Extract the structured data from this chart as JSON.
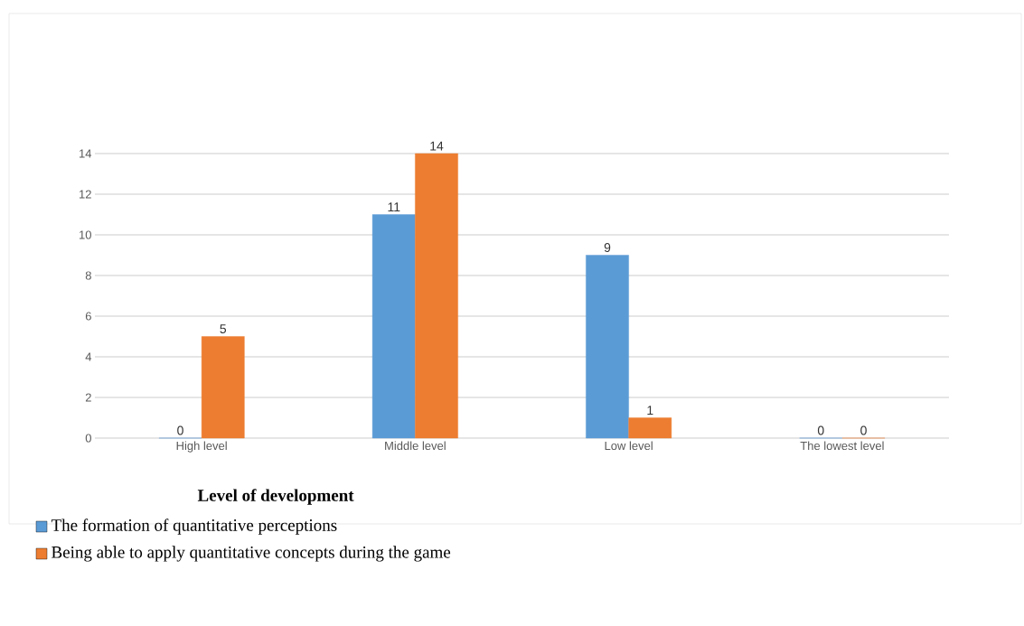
{
  "chart_data": {
    "type": "bar",
    "annotations": [
      "Level of development"
    ],
    "categories": [
      "High level",
      "Middle level",
      "Low level",
      "The lowest level"
    ],
    "series": [
      {
        "name": "The formation of quantitative perceptions",
        "color": "#5b9bd5",
        "values": [
          0,
          11,
          9,
          0
        ]
      },
      {
        "name": "Being able to apply quantitative concepts during the game",
        "color": "#ed7d31",
        "values": [
          5,
          14,
          1,
          0
        ]
      }
    ],
    "ylim": [
      0,
      14
    ],
    "yticks": [
      0,
      2,
      4,
      6,
      8,
      10,
      12,
      14
    ],
    "grid": "y",
    "data_labels": true,
    "legend": "bottom"
  }
}
